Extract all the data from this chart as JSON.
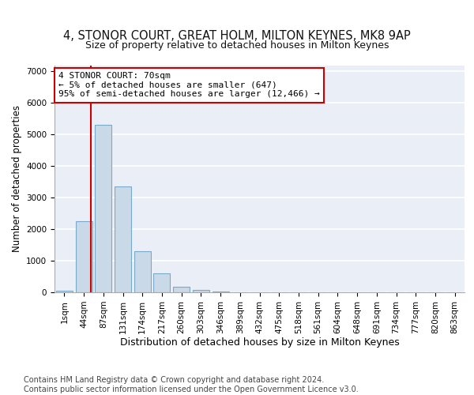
{
  "title": "4, STONOR COURT, GREAT HOLM, MILTON KEYNES, MK8 9AP",
  "subtitle": "Size of property relative to detached houses in Milton Keynes",
  "xlabel": "Distribution of detached houses by size in Milton Keynes",
  "ylabel": "Number of detached properties",
  "bar_labels": [
    "1sqm",
    "44sqm",
    "87sqm",
    "131sqm",
    "174sqm",
    "217sqm",
    "260sqm",
    "303sqm",
    "346sqm",
    "389sqm",
    "432sqm",
    "475sqm",
    "518sqm",
    "561sqm",
    "604sqm",
    "648sqm",
    "691sqm",
    "734sqm",
    "777sqm",
    "820sqm",
    "863sqm"
  ],
  "bar_values": [
    50,
    2250,
    5300,
    3350,
    1300,
    600,
    175,
    75,
    20,
    5,
    2,
    1,
    0,
    0,
    0,
    0,
    0,
    0,
    0,
    0,
    0
  ],
  "bar_color": "#c9d9e8",
  "bar_edge_color": "#7aaac8",
  "bar_edge_width": 0.8,
  "red_line_x": 1.35,
  "annotation_text": "4 STONOR COURT: 70sqm\n← 5% of detached houses are smaller (647)\n95% of semi-detached houses are larger (12,466) →",
  "annotation_box_color": "#ffffff",
  "annotation_box_edge": "#cc0000",
  "annotation_fontsize": 8.0,
  "ylim": [
    0,
    7200
  ],
  "yticks": [
    0,
    1000,
    2000,
    3000,
    4000,
    5000,
    6000,
    7000
  ],
  "background_color": "#eaeff7",
  "grid_color": "#ffffff",
  "title_fontsize": 10.5,
  "subtitle_fontsize": 9.0,
  "xlabel_fontsize": 9.0,
  "ylabel_fontsize": 8.5,
  "tick_fontsize": 7.5,
  "footer_text": "Contains HM Land Registry data © Crown copyright and database right 2024.\nContains public sector information licensed under the Open Government Licence v3.0.",
  "footer_fontsize": 7.0
}
